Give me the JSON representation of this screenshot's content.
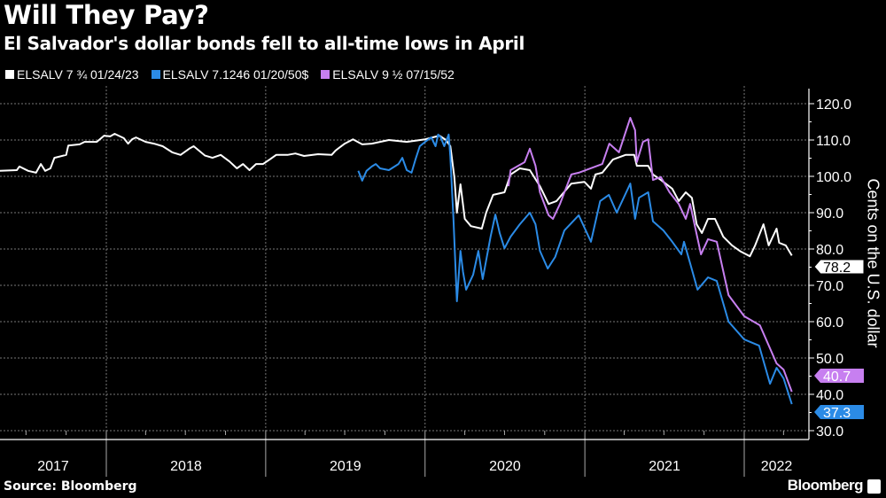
{
  "header": {
    "title": "Will They Pay?",
    "subtitle": "El Salvador's dollar bonds fell to all-time lows in April"
  },
  "footer": {
    "source": "Source: Bloomberg",
    "brand": "Bloomberg"
  },
  "chart_data": {
    "type": "line",
    "title": "Will They Pay?",
    "subtitle": "El Salvador's dollar bonds fell to all-time lows in April",
    "ylabel": "Cents on the U.S. dollar",
    "xlabel": "",
    "yaxis_side": "right",
    "ylim": [
      30,
      120
    ],
    "yticks": [
      "120.0",
      "110.0",
      "100.0",
      "90.0",
      "80.0",
      "70.0",
      "60.0",
      "50.0",
      "40.0",
      "30.0"
    ],
    "xlim": [
      "2017-05-01",
      "2022-05-10"
    ],
    "xticks": [
      "2017",
      "2018",
      "2019",
      "2020",
      "2021",
      "2022"
    ],
    "grid": true,
    "legend_placement": "top-left",
    "background": "#000000",
    "series": [
      {
        "name": "ELSALV 7 ¾ 01/24/23",
        "color": "#ffffff",
        "last_label": "78.2",
        "points": [
          [
            "2017-05-01",
            101.5
          ],
          [
            "2017-06-10",
            101.7
          ],
          [
            "2017-06-16",
            102.7
          ],
          [
            "2017-07-06",
            101.5
          ],
          [
            "2017-07-24",
            101.0
          ],
          [
            "2017-08-04",
            103.4
          ],
          [
            "2017-08-14",
            101.5
          ],
          [
            "2017-08-26",
            102.2
          ],
          [
            "2017-09-04",
            105.1
          ],
          [
            "2017-10-01",
            105.9
          ],
          [
            "2017-10-06",
            108.5
          ],
          [
            "2017-11-01",
            108.8
          ],
          [
            "2017-11-12",
            109.5
          ],
          [
            "2017-12-10",
            109.5
          ],
          [
            "2017-12-27",
            111.2
          ],
          [
            "2018-01-10",
            111.0
          ],
          [
            "2018-01-20",
            111.7
          ],
          [
            "2018-02-10",
            110.5
          ],
          [
            "2018-02-20",
            109.0
          ],
          [
            "2018-03-01",
            110.2
          ],
          [
            "2018-03-10",
            110.7
          ],
          [
            "2018-04-01",
            109.5
          ],
          [
            "2018-04-20",
            109.0
          ],
          [
            "2018-05-10",
            108.3
          ],
          [
            "2018-06-01",
            106.6
          ],
          [
            "2018-06-20",
            105.9
          ],
          [
            "2018-07-10",
            107.6
          ],
          [
            "2018-07-20",
            108.3
          ],
          [
            "2018-08-15",
            105.7
          ],
          [
            "2018-09-01",
            105.1
          ],
          [
            "2018-09-20",
            105.9
          ],
          [
            "2018-10-10",
            104.1
          ],
          [
            "2018-10-27",
            102.2
          ],
          [
            "2018-11-10",
            103.4
          ],
          [
            "2018-11-25",
            101.7
          ],
          [
            "2018-12-10",
            103.4
          ],
          [
            "2018-12-26",
            103.4
          ],
          [
            "2019-01-10",
            104.6
          ],
          [
            "2019-01-25",
            105.9
          ],
          [
            "2019-02-20",
            105.9
          ],
          [
            "2019-03-10",
            106.3
          ],
          [
            "2019-03-30",
            105.6
          ],
          [
            "2019-05-01",
            106.1
          ],
          [
            "2019-06-01",
            105.9
          ],
          [
            "2019-06-10",
            107.1
          ],
          [
            "2019-07-01",
            109.0
          ],
          [
            "2019-07-20",
            110.2
          ],
          [
            "2019-08-10",
            108.8
          ],
          [
            "2019-09-01",
            109.0
          ],
          [
            "2019-10-10",
            110.0
          ],
          [
            "2019-11-20",
            109.5
          ],
          [
            "2020-01-01",
            110.2
          ],
          [
            "2020-02-03",
            111.2
          ],
          [
            "2020-02-18",
            110.0
          ],
          [
            "2020-02-28",
            108.3
          ],
          [
            "2020-03-08",
            99.8
          ],
          [
            "2020-03-14",
            90.0
          ],
          [
            "2020-03-22",
            97.8
          ],
          [
            "2020-04-01",
            88.3
          ],
          [
            "2020-04-15",
            86.3
          ],
          [
            "2020-05-10",
            85.6
          ],
          [
            "2020-05-20",
            90.0
          ],
          [
            "2020-06-05",
            94.9
          ],
          [
            "2020-07-01",
            95.6
          ],
          [
            "2020-07-15",
            100.5
          ],
          [
            "2020-08-05",
            102.2
          ],
          [
            "2020-08-28",
            101.7
          ],
          [
            "2020-09-20",
            97.3
          ],
          [
            "2020-10-10",
            92.4
          ],
          [
            "2020-10-28",
            93.2
          ],
          [
            "2020-12-01",
            98.0
          ],
          [
            "2020-12-31",
            98.5
          ],
          [
            "2021-01-15",
            96.6
          ],
          [
            "2021-01-25",
            100.5
          ],
          [
            "2021-02-10",
            101.0
          ],
          [
            "2021-03-06",
            104.6
          ],
          [
            "2021-04-04",
            105.9
          ],
          [
            "2021-04-24",
            105.9
          ],
          [
            "2021-04-30",
            102.9
          ],
          [
            "2021-05-26",
            102.9
          ],
          [
            "2021-06-06",
            100.5
          ],
          [
            "2021-06-24",
            99.0
          ],
          [
            "2021-07-20",
            96.6
          ],
          [
            "2021-08-04",
            93.2
          ],
          [
            "2021-08-20",
            95.6
          ],
          [
            "2021-09-03",
            94.1
          ],
          [
            "2021-09-14",
            86.8
          ],
          [
            "2021-09-26",
            84.4
          ],
          [
            "2021-10-10",
            88.3
          ],
          [
            "2021-10-26",
            88.3
          ],
          [
            "2021-11-14",
            83.4
          ],
          [
            "2021-12-04",
            81.0
          ],
          [
            "2021-12-24",
            79.3
          ],
          [
            "2022-01-14",
            78.0
          ],
          [
            "2022-01-26",
            81.0
          ],
          [
            "2022-02-14",
            86.8
          ],
          [
            "2022-02-26",
            81.0
          ],
          [
            "2022-03-16",
            85.6
          ],
          [
            "2022-03-22",
            81.7
          ],
          [
            "2022-04-06",
            81.0
          ],
          [
            "2022-04-20",
            78.2
          ]
        ]
      },
      {
        "name": "ELSALV 7.1246 01/20/50$",
        "color": "#2b8be6",
        "last_label": "37.3",
        "points": [
          [
            "2019-08-01",
            101.5
          ],
          [
            "2019-08-10",
            98.8
          ],
          [
            "2019-08-20",
            101.5
          ],
          [
            "2019-09-01",
            102.7
          ],
          [
            "2019-09-10",
            103.4
          ],
          [
            "2019-09-20",
            102.2
          ],
          [
            "2019-10-10",
            101.7
          ],
          [
            "2019-11-01",
            103.4
          ],
          [
            "2019-11-10",
            105.1
          ],
          [
            "2019-11-20",
            101.7
          ],
          [
            "2019-12-01",
            101.0
          ],
          [
            "2019-12-10",
            104.6
          ],
          [
            "2019-12-20",
            108.3
          ],
          [
            "2020-01-01",
            109.5
          ],
          [
            "2020-01-15",
            110.7
          ],
          [
            "2020-01-25",
            108.3
          ],
          [
            "2020-01-31",
            111.5
          ],
          [
            "2020-02-06",
            110.7
          ],
          [
            "2020-02-14",
            108.3
          ],
          [
            "2020-02-24",
            111.5
          ],
          [
            "2020-02-28",
            105.4
          ],
          [
            "2020-03-06",
            88.3
          ],
          [
            "2020-03-14",
            65.6
          ],
          [
            "2020-03-22",
            79.5
          ],
          [
            "2020-03-28",
            73.7
          ],
          [
            "2020-04-04",
            68.8
          ],
          [
            "2020-04-20",
            72.9
          ],
          [
            "2020-05-02",
            79.5
          ],
          [
            "2020-05-12",
            71.7
          ],
          [
            "2020-05-30",
            83.4
          ],
          [
            "2020-06-10",
            89.5
          ],
          [
            "2020-06-20",
            84.4
          ],
          [
            "2020-07-01",
            80.2
          ],
          [
            "2020-07-15",
            83.4
          ],
          [
            "2020-08-05",
            86.8
          ],
          [
            "2020-08-28",
            90.0
          ],
          [
            "2020-09-10",
            86.8
          ],
          [
            "2020-09-20",
            79.5
          ],
          [
            "2020-10-08",
            74.6
          ],
          [
            "2020-10-25",
            77.8
          ],
          [
            "2020-11-15",
            85.1
          ],
          [
            "2020-12-18",
            89.3
          ],
          [
            "2021-01-15",
            82.0
          ],
          [
            "2021-02-05",
            93.2
          ],
          [
            "2021-02-25",
            94.9
          ],
          [
            "2021-03-15",
            90.0
          ],
          [
            "2021-04-15",
            98.0
          ],
          [
            "2021-04-26",
            88.3
          ],
          [
            "2021-05-05",
            94.1
          ],
          [
            "2021-05-26",
            95.6
          ],
          [
            "2021-06-06",
            87.6
          ],
          [
            "2021-06-30",
            85.1
          ],
          [
            "2021-07-20",
            82.0
          ],
          [
            "2021-08-10",
            78.5
          ],
          [
            "2021-08-16",
            82.0
          ],
          [
            "2021-08-30",
            76.1
          ],
          [
            "2021-09-16",
            68.8
          ],
          [
            "2021-10-10",
            72.2
          ],
          [
            "2021-10-30",
            71.2
          ],
          [
            "2021-11-26",
            60.0
          ],
          [
            "2022-01-01",
            55.1
          ],
          [
            "2022-02-04",
            53.4
          ],
          [
            "2022-03-01",
            42.9
          ],
          [
            "2022-03-16",
            47.3
          ],
          [
            "2022-04-01",
            44.4
          ],
          [
            "2022-04-20",
            37.3
          ]
        ]
      },
      {
        "name": "ELSALV 9 ½ 07/15/52",
        "color": "#c77ff0",
        "last_label": "40.7",
        "points": [
          [
            "2020-07-10",
            97.3
          ],
          [
            "2020-07-15",
            101.7
          ],
          [
            "2020-08-16",
            103.9
          ],
          [
            "2020-08-28",
            107.6
          ],
          [
            "2020-09-10",
            102.9
          ],
          [
            "2020-09-20",
            95.6
          ],
          [
            "2020-10-10",
            89.3
          ],
          [
            "2020-10-20",
            88.3
          ],
          [
            "2020-11-05",
            92.4
          ],
          [
            "2020-12-01",
            100.5
          ],
          [
            "2020-12-18",
            101.0
          ],
          [
            "2021-02-10",
            103.4
          ],
          [
            "2021-02-26",
            109.0
          ],
          [
            "2021-03-20",
            106.6
          ],
          [
            "2021-04-15",
            116.1
          ],
          [
            "2021-04-26",
            112.7
          ],
          [
            "2021-04-30",
            103.9
          ],
          [
            "2021-05-14",
            109.5
          ],
          [
            "2021-05-26",
            110.2
          ],
          [
            "2021-06-06",
            99.0
          ],
          [
            "2021-06-24",
            99.8
          ],
          [
            "2021-07-14",
            95.6
          ],
          [
            "2021-08-04",
            92.4
          ],
          [
            "2021-08-20",
            88.3
          ],
          [
            "2021-08-30",
            92.4
          ],
          [
            "2021-09-24",
            78.5
          ],
          [
            "2021-10-10",
            82.7
          ],
          [
            "2021-10-30",
            82.0
          ],
          [
            "2021-11-26",
            67.3
          ],
          [
            "2022-01-01",
            61.5
          ],
          [
            "2022-02-06",
            59.0
          ],
          [
            "2022-03-16",
            48.5
          ],
          [
            "2022-04-01",
            46.8
          ],
          [
            "2022-04-20",
            40.7
          ]
        ]
      }
    ]
  }
}
